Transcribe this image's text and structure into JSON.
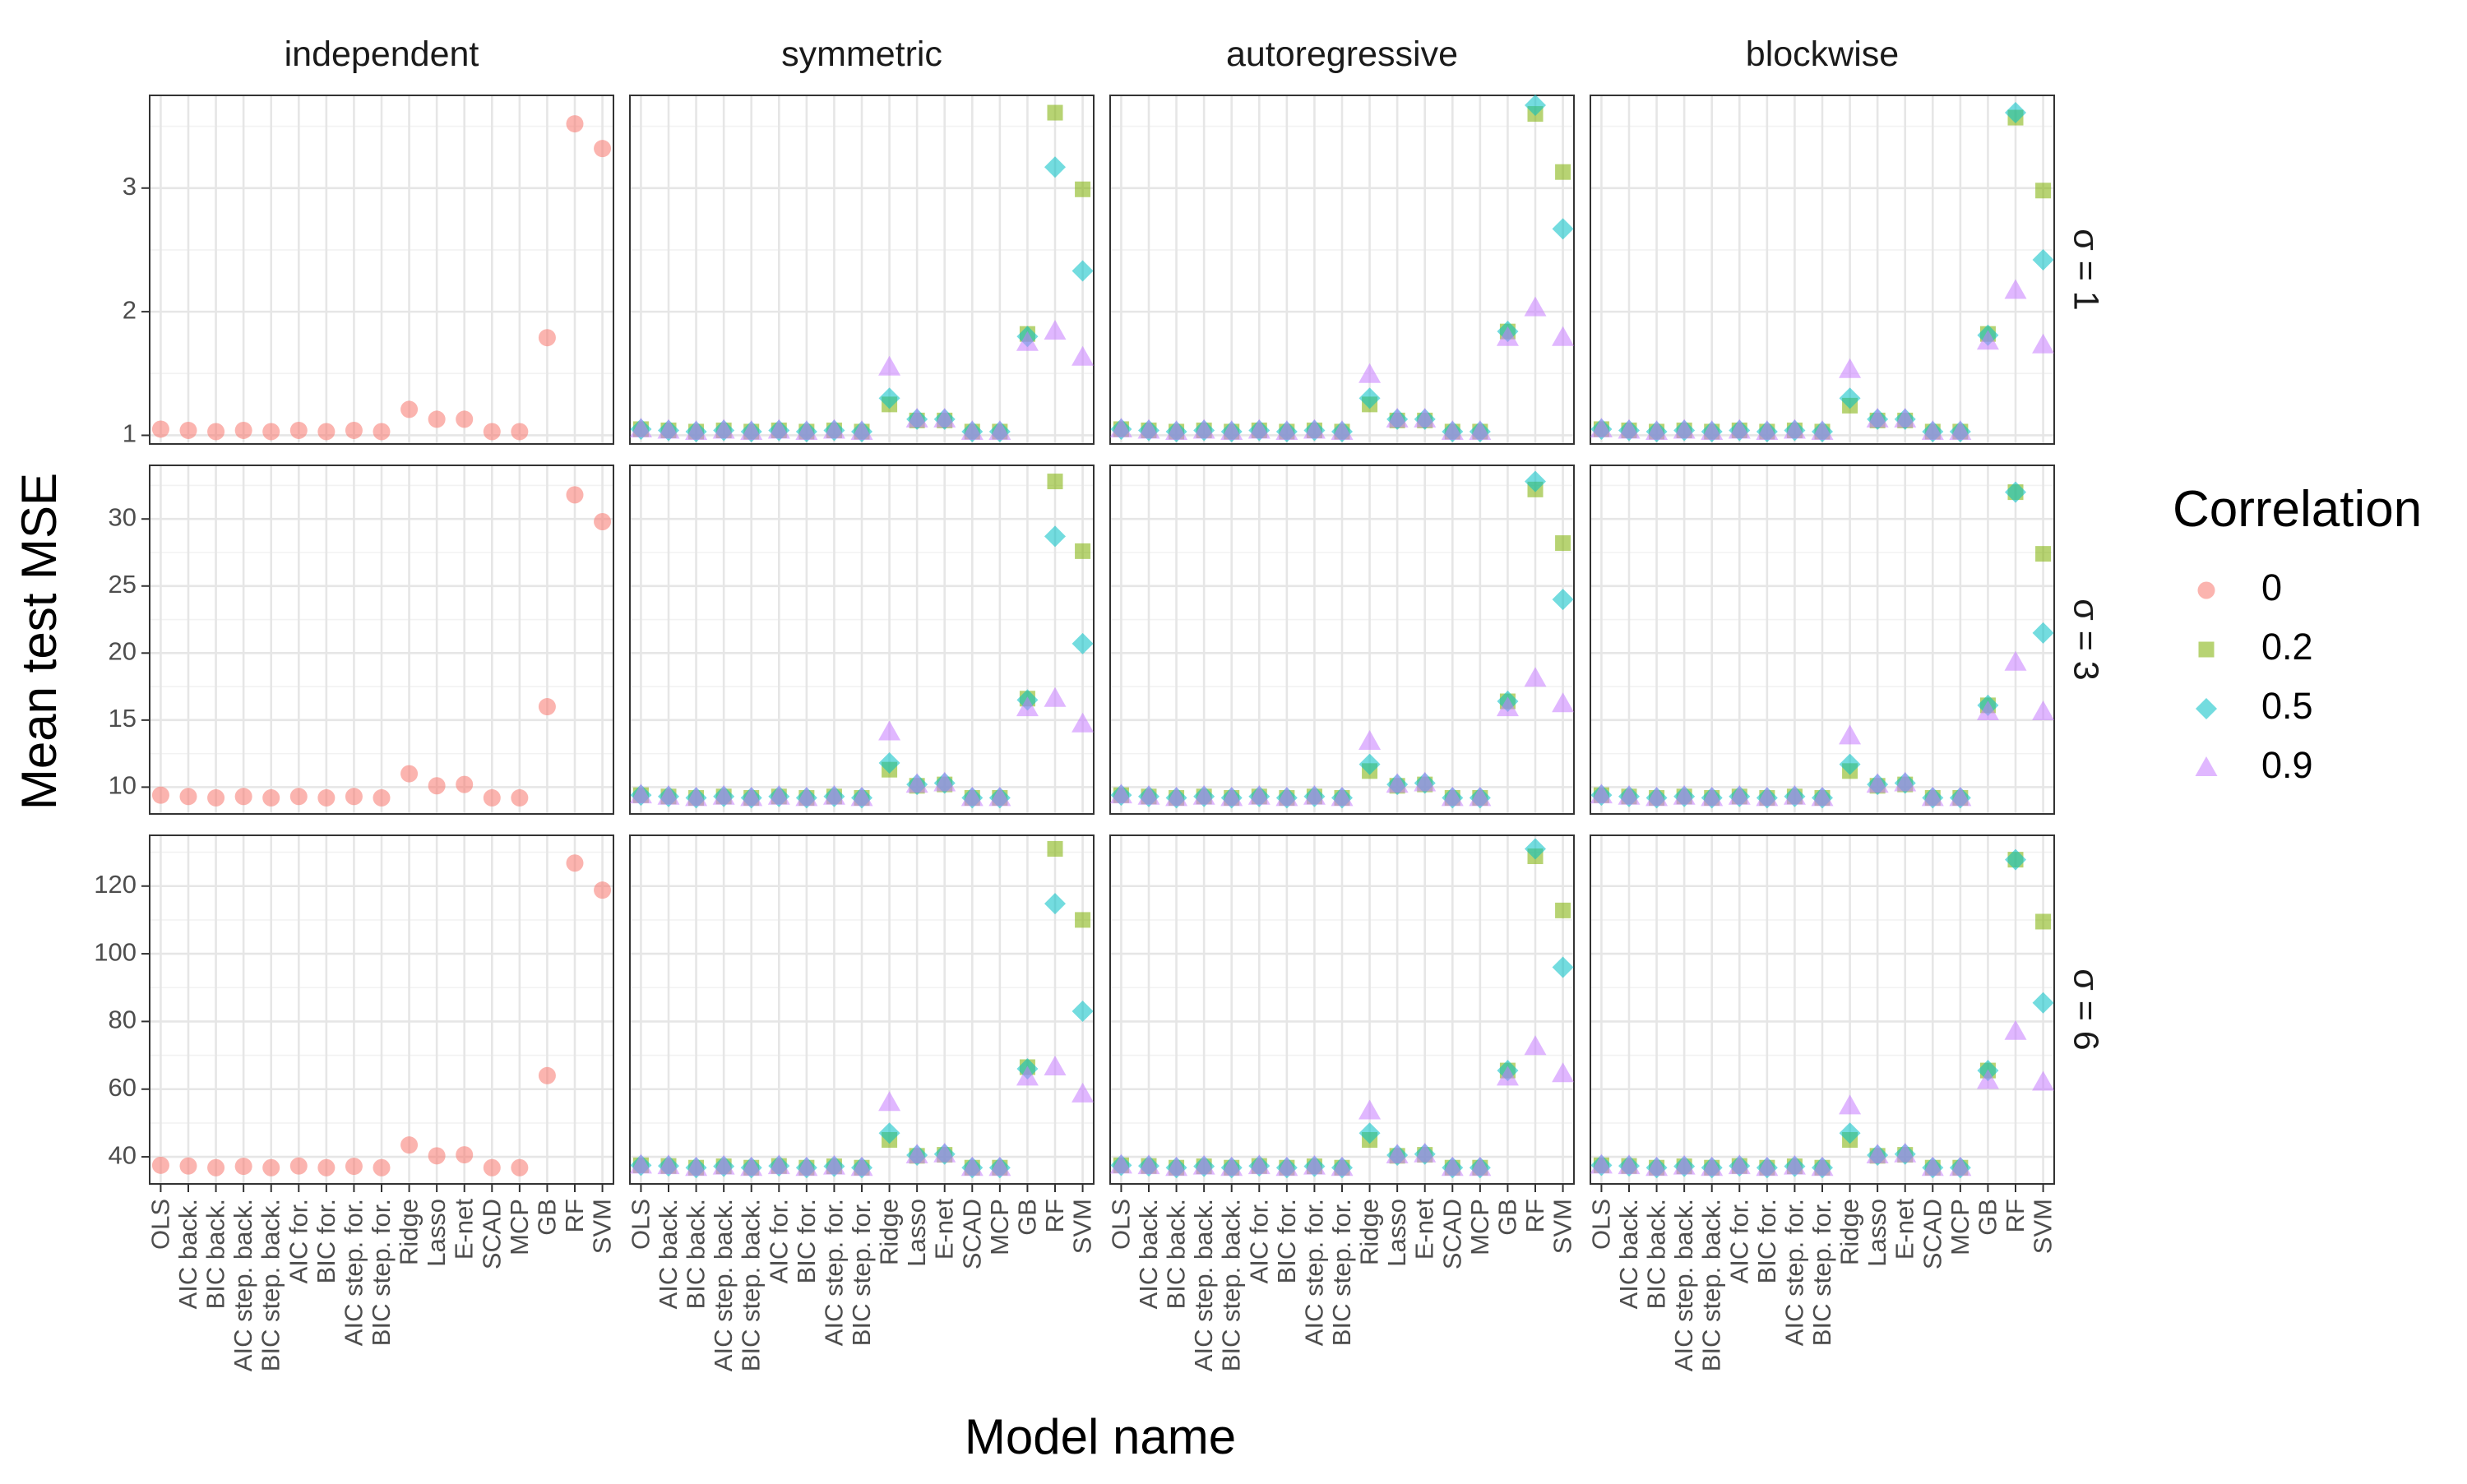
{
  "colors": {
    "0": "#F8766D",
    "0.2": "#7CAE00",
    "0.5": "#00BFC4",
    "0.9": "#C77CFF"
  },
  "chart_data": {
    "type": "scatter",
    "xlabel": "Model name",
    "ylabel": "Mean test MSE",
    "columns": [
      "independent",
      "symmetric",
      "autoregressive",
      "blockwise"
    ],
    "rows": [
      {
        "label": "σ = 1",
        "yticks": [
          1,
          2,
          3
        ],
        "ylim": [
          0.93,
          3.75
        ]
      },
      {
        "label": "σ = 3",
        "yticks": [
          10,
          15,
          20,
          25,
          30
        ],
        "ylim": [
          8.0,
          34.0
        ]
      },
      {
        "label": "σ = 6",
        "yticks": [
          40,
          60,
          80,
          100,
          120
        ],
        "ylim": [
          32,
          135
        ]
      }
    ],
    "categories": [
      "OLS",
      "AIC back.",
      "BIC back.",
      "AIC step. back.",
      "BIC step. back.",
      "AIC for.",
      "BIC for.",
      "AIC step. for.",
      "BIC step. for.",
      "Ridge",
      "Lasso",
      "E-net",
      "SCAD",
      "MCP",
      "GB",
      "RF",
      "SVM"
    ],
    "legend": {
      "title": "Correlation",
      "position": "right",
      "entries": [
        {
          "label": "0",
          "shape": "circle"
        },
        {
          "label": "0.2",
          "shape": "square"
        },
        {
          "label": "0.5",
          "shape": "diamond"
        },
        {
          "label": "0.9",
          "shape": "triangle"
        }
      ]
    },
    "grid": true,
    "panels": [
      {
        "row": 0,
        "col": 0,
        "series": [
          {
            "name": "0",
            "values": [
              1.05,
              1.04,
              1.03,
              1.04,
              1.03,
              1.04,
              1.03,
              1.04,
              1.03,
              1.21,
              1.13,
              1.13,
              1.03,
              1.03,
              1.79,
              3.52,
              3.32
            ]
          }
        ]
      },
      {
        "row": 0,
        "col": 1,
        "series": [
          {
            "name": "0.2",
            "values": [
              1.05,
              1.04,
              1.03,
              1.04,
              1.03,
              1.04,
              1.03,
              1.04,
              1.03,
              1.25,
              1.12,
              1.12,
              1.03,
              1.03,
              1.82,
              3.61,
              2.99
            ]
          },
          {
            "name": "0.5",
            "values": [
              1.05,
              1.04,
              1.03,
              1.04,
              1.03,
              1.04,
              1.03,
              1.04,
              1.03,
              1.3,
              1.13,
              1.13,
              1.03,
              1.03,
              1.8,
              3.17,
              2.33
            ]
          },
          {
            "name": "0.9",
            "values": [
              1.05,
              1.04,
              1.03,
              1.04,
              1.03,
              1.04,
              1.03,
              1.04,
              1.03,
              1.55,
              1.13,
              1.13,
              1.03,
              1.03,
              1.75,
              1.84,
              1.63
            ]
          }
        ]
      },
      {
        "row": 0,
        "col": 2,
        "series": [
          {
            "name": "0.2",
            "values": [
              1.05,
              1.04,
              1.03,
              1.04,
              1.03,
              1.04,
              1.03,
              1.04,
              1.03,
              1.25,
              1.12,
              1.12,
              1.03,
              1.03,
              1.84,
              3.6,
              3.13
            ]
          },
          {
            "name": "0.5",
            "values": [
              1.05,
              1.04,
              1.03,
              1.04,
              1.03,
              1.04,
              1.03,
              1.04,
              1.03,
              1.3,
              1.13,
              1.13,
              1.03,
              1.03,
              1.84,
              3.67,
              2.67
            ]
          },
          {
            "name": "0.9",
            "values": [
              1.05,
              1.04,
              1.03,
              1.04,
              1.03,
              1.04,
              1.03,
              1.04,
              1.03,
              1.49,
              1.13,
              1.13,
              1.03,
              1.03,
              1.79,
              2.03,
              1.79
            ]
          }
        ]
      },
      {
        "row": 0,
        "col": 3,
        "series": [
          {
            "name": "0.2",
            "values": [
              1.05,
              1.04,
              1.03,
              1.04,
              1.03,
              1.04,
              1.03,
              1.04,
              1.03,
              1.24,
              1.12,
              1.12,
              1.03,
              1.03,
              1.82,
              3.57,
              2.98
            ]
          },
          {
            "name": "0.5",
            "values": [
              1.05,
              1.04,
              1.03,
              1.04,
              1.03,
              1.04,
              1.03,
              1.04,
              1.03,
              1.3,
              1.13,
              1.13,
              1.03,
              1.03,
              1.81,
              3.61,
              2.42
            ]
          },
          {
            "name": "0.9",
            "values": [
              1.05,
              1.04,
              1.03,
              1.04,
              1.03,
              1.04,
              1.03,
              1.04,
              1.03,
              1.53,
              1.13,
              1.13,
              1.03,
              1.03,
              1.76,
              2.17,
              1.73
            ]
          }
        ]
      },
      {
        "row": 1,
        "col": 0,
        "series": [
          {
            "name": "0",
            "values": [
              9.4,
              9.3,
              9.2,
              9.3,
              9.2,
              9.3,
              9.2,
              9.3,
              9.2,
              11.0,
              10.1,
              10.2,
              9.2,
              9.2,
              16.0,
              31.8,
              29.8
            ]
          }
        ]
      },
      {
        "row": 1,
        "col": 1,
        "series": [
          {
            "name": "0.2",
            "values": [
              9.4,
              9.3,
              9.2,
              9.3,
              9.2,
              9.3,
              9.2,
              9.3,
              9.2,
              11.3,
              10.1,
              10.2,
              9.2,
              9.2,
              16.6,
              32.8,
              27.6
            ]
          },
          {
            "name": "0.5",
            "values": [
              9.4,
              9.3,
              9.2,
              9.3,
              9.2,
              9.3,
              9.2,
              9.3,
              9.2,
              11.8,
              10.2,
              10.3,
              9.2,
              9.2,
              16.5,
              28.7,
              20.7
            ]
          },
          {
            "name": "0.9",
            "values": [
              9.4,
              9.3,
              9.2,
              9.3,
              9.2,
              9.3,
              9.2,
              9.3,
              9.2,
              14.1,
              10.2,
              10.3,
              9.2,
              9.2,
              15.9,
              16.6,
              14.7
            ]
          }
        ]
      },
      {
        "row": 1,
        "col": 2,
        "series": [
          {
            "name": "0.2",
            "values": [
              9.4,
              9.3,
              9.2,
              9.3,
              9.2,
              9.3,
              9.2,
              9.3,
              9.2,
              11.2,
              10.1,
              10.2,
              9.2,
              9.2,
              16.4,
              32.2,
              28.2
            ]
          },
          {
            "name": "0.5",
            "values": [
              9.4,
              9.3,
              9.2,
              9.3,
              9.2,
              9.3,
              9.2,
              9.3,
              9.2,
              11.7,
              10.2,
              10.3,
              9.2,
              9.2,
              16.4,
              32.8,
              24.0
            ]
          },
          {
            "name": "0.9",
            "values": [
              9.4,
              9.3,
              9.2,
              9.3,
              9.2,
              9.3,
              9.2,
              9.3,
              9.2,
              13.4,
              10.2,
              10.3,
              9.2,
              9.2,
              15.9,
              18.1,
              16.2
            ]
          }
        ]
      },
      {
        "row": 1,
        "col": 3,
        "series": [
          {
            "name": "0.2",
            "values": [
              9.4,
              9.3,
              9.2,
              9.3,
              9.2,
              9.3,
              9.2,
              9.3,
              9.2,
              11.2,
              10.1,
              10.2,
              9.2,
              9.2,
              16.1,
              32.0,
              27.4
            ]
          },
          {
            "name": "0.5",
            "values": [
              9.4,
              9.3,
              9.2,
              9.3,
              9.2,
              9.3,
              9.2,
              9.3,
              9.2,
              11.7,
              10.2,
              10.3,
              9.2,
              9.2,
              16.1,
              32.0,
              21.5
            ]
          },
          {
            "name": "0.9",
            "values": [
              9.4,
              9.3,
              9.2,
              9.3,
              9.2,
              9.3,
              9.2,
              9.3,
              9.2,
              13.8,
              10.2,
              10.3,
              9.2,
              9.2,
              15.6,
              19.3,
              15.6
            ]
          }
        ]
      },
      {
        "row": 2,
        "col": 0,
        "series": [
          {
            "name": "0",
            "values": [
              37.5,
              37.3,
              36.8,
              37.2,
              36.8,
              37.3,
              36.8,
              37.2,
              36.8,
              43.5,
              40.3,
              40.6,
              36.8,
              36.8,
              64.0,
              126.8,
              118.8
            ]
          }
        ]
      },
      {
        "row": 2,
        "col": 1,
        "series": [
          {
            "name": "0.2",
            "values": [
              37.5,
              37.3,
              36.8,
              37.2,
              36.8,
              37.3,
              36.8,
              37.2,
              36.8,
              45.0,
              40.3,
              40.6,
              36.8,
              36.8,
              66.5,
              131.0,
              110.0
            ]
          },
          {
            "name": "0.5",
            "values": [
              37.5,
              37.3,
              36.8,
              37.2,
              36.8,
              37.3,
              36.8,
              37.2,
              36.8,
              47.0,
              40.5,
              40.8,
              36.8,
              36.8,
              66.0,
              114.8,
              83.0
            ]
          },
          {
            "name": "0.9",
            "values": [
              37.5,
              37.3,
              36.8,
              37.2,
              36.8,
              37.3,
              36.8,
              37.2,
              36.8,
              56.0,
              40.5,
              40.8,
              36.8,
              36.8,
              63.5,
              66.5,
              58.5
            ]
          }
        ]
      },
      {
        "row": 2,
        "col": 2,
        "series": [
          {
            "name": "0.2",
            "values": [
              37.5,
              37.3,
              36.8,
              37.2,
              36.8,
              37.3,
              36.8,
              37.2,
              36.8,
              45.0,
              40.3,
              40.6,
              36.8,
              36.8,
              65.5,
              128.8,
              112.8
            ]
          },
          {
            "name": "0.5",
            "values": [
              37.5,
              37.3,
              36.8,
              37.2,
              36.8,
              37.3,
              36.8,
              37.2,
              36.8,
              47.0,
              40.5,
              40.8,
              36.8,
              36.8,
              65.5,
              131.0,
              96.0
            ]
          },
          {
            "name": "0.9",
            "values": [
              37.5,
              37.3,
              36.8,
              37.2,
              36.8,
              37.3,
              36.8,
              37.2,
              36.8,
              53.5,
              40.5,
              40.8,
              36.8,
              36.8,
              63.5,
              72.5,
              64.5
            ]
          }
        ]
      },
      {
        "row": 2,
        "col": 3,
        "series": [
          {
            "name": "0.2",
            "values": [
              37.5,
              37.3,
              36.8,
              37.2,
              36.8,
              37.3,
              36.8,
              37.2,
              36.8,
              45.0,
              40.3,
              40.6,
              36.8,
              36.8,
              65.5,
              127.8,
              109.5
            ]
          },
          {
            "name": "0.5",
            "values": [
              37.5,
              37.3,
              36.8,
              37.2,
              36.8,
              37.3,
              36.8,
              37.2,
              36.8,
              47.0,
              40.5,
              40.8,
              36.8,
              36.8,
              65.5,
              127.8,
              85.5
            ]
          },
          {
            "name": "0.9",
            "values": [
              37.5,
              37.3,
              36.8,
              37.2,
              36.8,
              37.3,
              36.8,
              37.2,
              36.8,
              55.0,
              40.5,
              40.8,
              36.8,
              36.8,
              62.5,
              77.0,
              62.0
            ]
          }
        ]
      }
    ]
  }
}
